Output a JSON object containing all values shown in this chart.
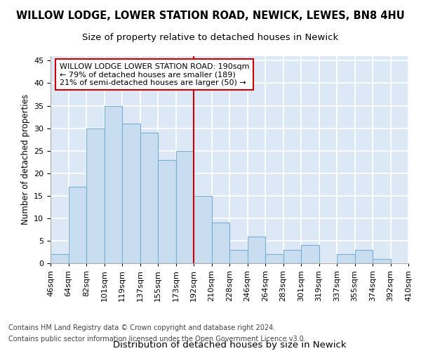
{
  "title": "WILLOW LODGE, LOWER STATION ROAD, NEWICK, LEWES, BN8 4HU",
  "subtitle": "Size of property relative to detached houses in Newick",
  "xlabel": "Distribution of detached houses by size in Newick",
  "ylabel": "Number of detached properties",
  "bin_edges": [
    "46sqm",
    "64sqm",
    "82sqm",
    "101sqm",
    "119sqm",
    "137sqm",
    "155sqm",
    "173sqm",
    "192sqm",
    "210sqm",
    "228sqm",
    "246sqm",
    "264sqm",
    "283sqm",
    "301sqm",
    "319sqm",
    "337sqm",
    "355sqm",
    "374sqm",
    "392sqm",
    "410sqm"
  ],
  "values": [
    2,
    17,
    30,
    35,
    31,
    29,
    23,
    25,
    15,
    9,
    3,
    6,
    2,
    3,
    4,
    0,
    2,
    3,
    1,
    0
  ],
  "bar_color": "#c8ddf0",
  "bar_edge_color": "#7aafd4",
  "vline_index": 8,
  "vline_color": "#cc0000",
  "annotation_text": "WILLOW LODGE LOWER STATION ROAD: 190sqm\n← 79% of detached houses are smaller (189)\n21% of semi-detached houses are larger (50) →",
  "annotation_box_edge": "#cc0000",
  "ylim": [
    0,
    46
  ],
  "yticks": [
    0,
    5,
    10,
    15,
    20,
    25,
    30,
    35,
    40,
    45
  ],
  "footer_line1": "Contains HM Land Registry data © Crown copyright and database right 2024.",
  "footer_line2": "Contains public sector information licensed under the Open Government Licence v3.0.",
  "plot_bg_color": "#dce8f5",
  "grid_color": "#ffffff",
  "title_fontsize": 10.5,
  "subtitle_fontsize": 9.5,
  "xlabel_fontsize": 9.5,
  "ylabel_fontsize": 8.5,
  "tick_fontsize": 8,
  "annotation_fontsize": 8,
  "footer_fontsize": 7
}
